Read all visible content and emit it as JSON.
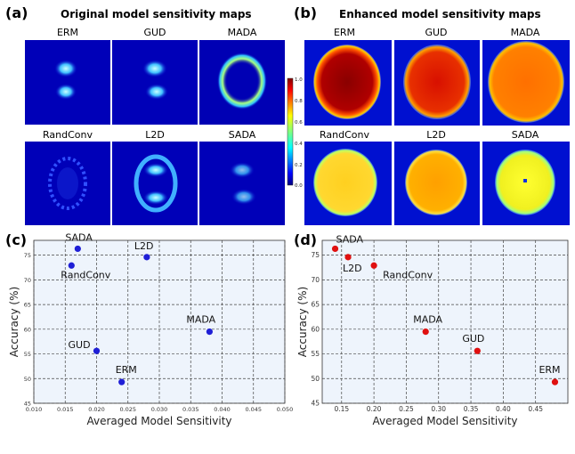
{
  "panels": {
    "a": {
      "letter": "(a)",
      "title": "Original model sensitivity maps"
    },
    "b": {
      "letter": "(b)",
      "title": "Enhanced model sensitivity maps"
    },
    "c": {
      "letter": "(c)"
    },
    "d": {
      "letter": "(d)"
    }
  },
  "map_labels": [
    "ERM",
    "GUD",
    "MADA",
    "RandConv",
    "L2D",
    "SADA"
  ],
  "colorbar": {
    "ticks": [
      "1.0",
      "0.8",
      "0.6",
      "0.4",
      "0.2",
      "0.0"
    ]
  },
  "chart_data": [
    {
      "type": "scatter",
      "panel": "c",
      "xlabel": "Averaged Model Sensitivity",
      "ylabel": "Accuracy (%)",
      "xlim": [
        0.01,
        0.05
      ],
      "ylim": [
        45,
        78
      ],
      "xticks": [
        "0.010",
        "0.015",
        "0.020",
        "0.025",
        "0.030",
        "0.035",
        "0.040",
        "0.045",
        "0.050"
      ],
      "yticks": [
        "45",
        "50",
        "55",
        "60",
        "65",
        "70",
        "75"
      ],
      "grid": true,
      "color": "#1f1fd6",
      "points": [
        {
          "label": "SADA",
          "x": 0.017,
          "y": 76.3
        },
        {
          "label": "RandConv",
          "x": 0.016,
          "y": 72.9
        },
        {
          "label": "L2D",
          "x": 0.028,
          "y": 74.6
        },
        {
          "label": "MADA",
          "x": 0.038,
          "y": 59.5
        },
        {
          "label": "GUD",
          "x": 0.02,
          "y": 55.6
        },
        {
          "label": "ERM",
          "x": 0.024,
          "y": 49.3
        }
      ]
    },
    {
      "type": "scatter",
      "panel": "d",
      "xlabel": "Averaged Model Sensitivity",
      "ylabel": "Accuracy (%)",
      "xlim": [
        0.12,
        0.5
      ],
      "ylim": [
        45,
        78
      ],
      "xticks": [
        "0.15",
        "0.20",
        "0.25",
        "0.30",
        "0.35",
        "0.40",
        "0.45"
      ],
      "yticks": [
        "45",
        "50",
        "55",
        "60",
        "65",
        "70",
        "75"
      ],
      "grid": true,
      "color": "#e01010",
      "points": [
        {
          "label": "SADA",
          "x": 0.14,
          "y": 76.3
        },
        {
          "label": "L2D",
          "x": 0.16,
          "y": 74.6
        },
        {
          "label": "RandConv",
          "x": 0.2,
          "y": 72.9
        },
        {
          "label": "MADA",
          "x": 0.28,
          "y": 59.5
        },
        {
          "label": "GUD",
          "x": 0.36,
          "y": 55.6
        },
        {
          "label": "ERM",
          "x": 0.48,
          "y": 49.3
        }
      ]
    }
  ]
}
